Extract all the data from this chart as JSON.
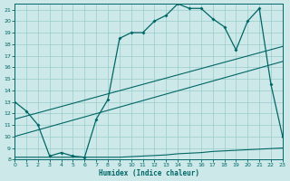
{
  "title": "",
  "xlabel": "Humidex (Indice chaleur)",
  "bg_color": "#cce8e8",
  "grid_color": "#99cccc",
  "line_color": "#006666",
  "xlim": [
    0,
    23
  ],
  "ylim": [
    8,
    21.5
  ],
  "xticks": [
    0,
    1,
    2,
    3,
    4,
    5,
    6,
    7,
    8,
    9,
    10,
    11,
    12,
    13,
    14,
    15,
    16,
    17,
    18,
    19,
    20,
    21,
    22,
    23
  ],
  "yticks": [
    8,
    9,
    10,
    11,
    12,
    13,
    14,
    15,
    16,
    17,
    18,
    19,
    20,
    21
  ],
  "curve1_x": [
    0,
    1,
    2,
    3,
    4,
    5,
    6,
    7,
    8,
    9,
    10,
    11,
    12,
    13,
    14,
    15,
    16,
    17,
    18,
    19,
    20,
    21,
    22,
    23
  ],
  "curve1_y": [
    13.0,
    12.2,
    11.0,
    8.3,
    8.6,
    8.3,
    8.2,
    11.5,
    13.2,
    18.5,
    19.0,
    19.0,
    20.0,
    20.5,
    21.5,
    21.1,
    21.1,
    20.2,
    19.5,
    17.5,
    20.0,
    21.1,
    14.5,
    10.0
  ],
  "curve2_y": [
    8.2,
    8.2,
    8.2,
    8.2,
    8.2,
    8.2,
    8.2,
    8.2,
    8.2,
    8.2,
    8.25,
    8.3,
    8.35,
    8.4,
    8.5,
    8.55,
    8.6,
    8.7,
    8.75,
    8.8,
    8.85,
    8.9,
    8.95,
    9.0
  ],
  "line3": [
    [
      0,
      23
    ],
    [
      11.5,
      17.8
    ]
  ],
  "line4": [
    [
      0,
      23
    ],
    [
      10.0,
      16.5
    ]
  ]
}
